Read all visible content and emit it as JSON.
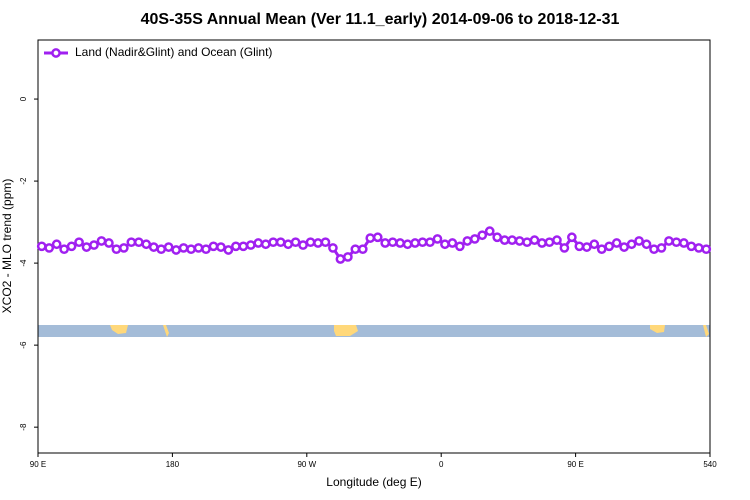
{
  "chart_data": {
    "type": "line",
    "title": "40S-35S Annual Mean (Ver 11.1_early)   2014-09-06 to 2018-12-31",
    "x_label": "Longitude (deg E)",
    "y_label": "XCO2 - MLO trend (ppm)",
    "xlim": [
      90,
      540
    ],
    "xticks": [
      {
        "value": 90,
        "label": "90 E"
      },
      180,
      {
        "value": 270,
        "label": "90 W"
      },
      {
        "value": 360,
        "label": "0"
      },
      {
        "value": 450,
        "label": "90 E"
      },
      540
    ],
    "ylim": [
      -8.63,
      1.44
    ],
    "yticks": [
      0,
      -2,
      -4,
      -6,
      -8
    ],
    "legend": "top-left",
    "series": [
      {
        "name": "Land (Nadir&Glint) and Ocean (Glint)",
        "color": "#a020f0",
        "x": [
          92.5,
          97.5,
          102.5,
          107.5,
          112.5,
          117.5,
          122.5,
          127.5,
          132.5,
          137.5,
          142.5,
          147.5,
          152.5,
          157.5,
          162.5,
          167.5,
          172.5,
          177.5,
          182.5,
          187.5,
          192.5,
          197.5,
          202.5,
          207.5,
          212.5,
          217.5,
          222.5,
          227.5,
          232.5,
          237.5,
          242.5,
          247.5,
          252.5,
          257.5,
          262.5,
          267.5,
          272.5,
          277.5,
          282.5,
          287.5,
          292.5,
          297.5,
          302.5,
          307.5,
          312.5,
          317.5,
          322.5,
          327.5,
          332.5,
          337.5,
          342.5,
          347.5,
          352.5,
          357.5,
          362.5,
          367.5,
          372.5,
          377.5,
          382.5,
          387.5,
          392.5,
          397.5,
          402.5,
          407.5,
          412.5,
          417.5,
          422.5,
          427.5,
          432.5,
          437.5,
          442.5,
          447.5,
          452.5,
          457.5,
          462.5,
          467.5,
          472.5,
          477.5,
          482.5,
          487.5,
          492.5,
          497.5,
          502.5,
          507.5,
          512.5,
          517.5,
          522.5,
          527.5,
          532.5,
          537.5
        ],
        "values": [
          -3.59,
          -3.63,
          -3.54,
          -3.66,
          -3.59,
          -3.49,
          -3.61,
          -3.56,
          -3.46,
          -3.51,
          -3.66,
          -3.63,
          -3.49,
          -3.49,
          -3.54,
          -3.61,
          -3.66,
          -3.61,
          -3.68,
          -3.63,
          -3.66,
          -3.63,
          -3.66,
          -3.59,
          -3.61,
          -3.68,
          -3.59,
          -3.59,
          -3.56,
          -3.51,
          -3.54,
          -3.49,
          -3.49,
          -3.54,
          -3.49,
          -3.56,
          -3.49,
          -3.51,
          -3.49,
          -3.63,
          -3.9,
          -3.85,
          -3.66,
          -3.66,
          -3.39,
          -3.37,
          -3.51,
          -3.49,
          -3.51,
          -3.54,
          -3.51,
          -3.49,
          -3.49,
          -3.41,
          -3.54,
          -3.51,
          -3.59,
          -3.46,
          -3.41,
          -3.32,
          -3.22,
          -3.37,
          -3.44,
          -3.44,
          -3.46,
          -3.49,
          -3.44,
          -3.51,
          -3.49,
          -3.44,
          -3.63,
          -3.37,
          -3.59,
          -3.61,
          -3.54,
          -3.66,
          -3.59,
          -3.51,
          -3.61,
          -3.54,
          -3.46,
          -3.54,
          -3.66,
          -3.63,
          -3.46,
          -3.49,
          -3.51,
          -3.59,
          -3.63,
          -3.66
        ]
      }
    ]
  }
}
